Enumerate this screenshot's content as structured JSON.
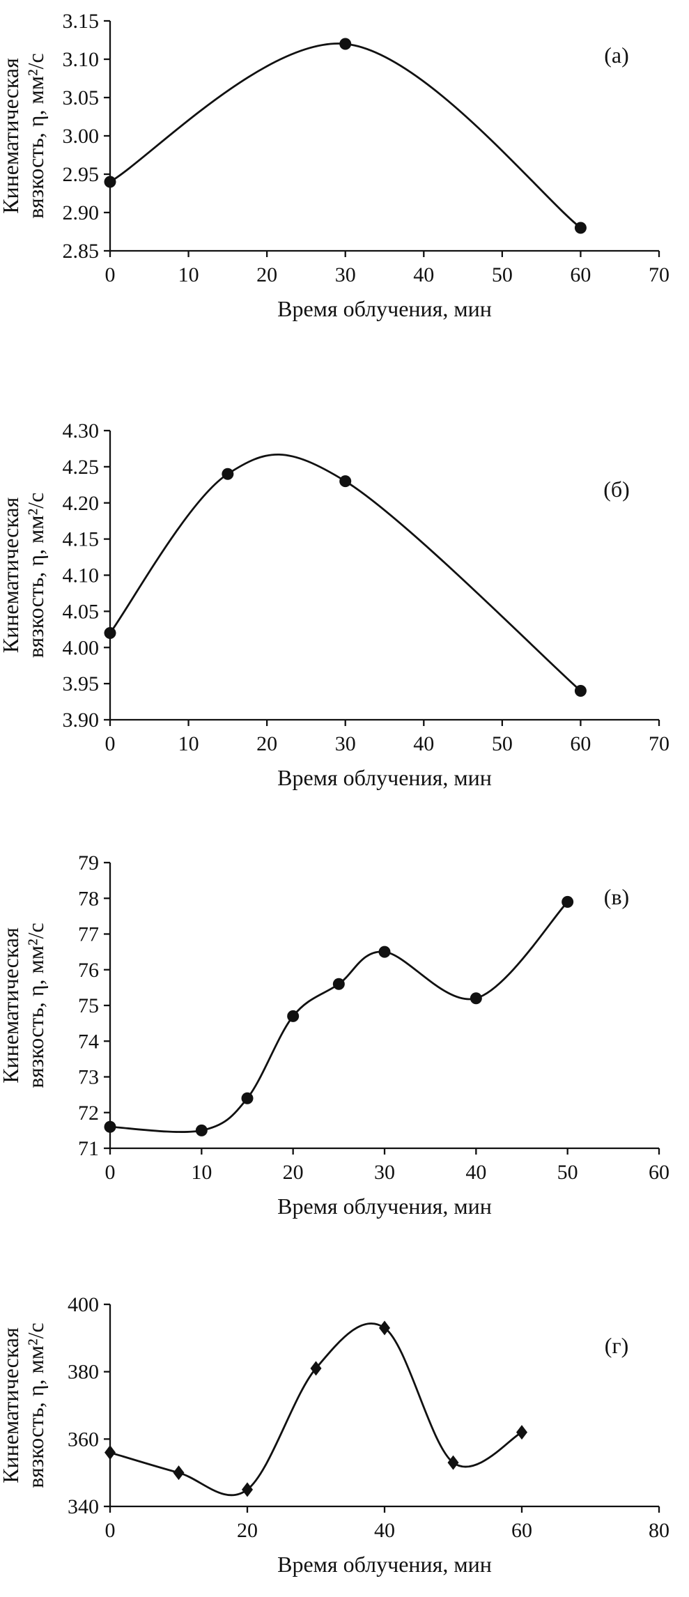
{
  "figure": {
    "background": "#ffffff",
    "ink_color": "#111111"
  },
  "chart_data": [
    {
      "type": "line",
      "panel_label": "(а)",
      "marker": "circle",
      "x": [
        0,
        30,
        60
      ],
      "y": [
        2.94,
        3.12,
        2.88
      ],
      "xlabel": "Время облучения, мин",
      "ylabel_lines": [
        "Кинематическая",
        "вязкость, η, мм²/с"
      ],
      "xlim": [
        0,
        70
      ],
      "ylim": [
        2.85,
        3.15
      ],
      "xticks": [
        0,
        10,
        20,
        30,
        40,
        50,
        60,
        70
      ],
      "xtick_labels": [
        "0",
        "10",
        "20",
        "30",
        "40",
        "50",
        "60",
        "70"
      ],
      "yticks": [
        2.85,
        2.9,
        2.95,
        3.0,
        3.05,
        3.1,
        3.15
      ],
      "ytick_labels": [
        "2.85",
        "2.90",
        "2.95",
        "3.00",
        "3.05",
        "3.10",
        "3.15"
      ],
      "grid": false,
      "legend": null
    },
    {
      "type": "line",
      "panel_label": "(б)",
      "marker": "circle",
      "x": [
        0,
        15,
        30,
        60
      ],
      "y": [
        4.02,
        4.24,
        4.23,
        3.94
      ],
      "xlabel": "Время облучения, мин",
      "ylabel_lines": [
        "Кинематическая",
        "вязкость, η, мм²/с"
      ],
      "xlim": [
        0,
        70
      ],
      "ylim": [
        3.9,
        4.3
      ],
      "xticks": [
        0,
        10,
        20,
        30,
        40,
        50,
        60,
        70
      ],
      "xtick_labels": [
        "0",
        "10",
        "20",
        "30",
        "40",
        "50",
        "60",
        "70"
      ],
      "yticks": [
        3.9,
        3.95,
        4.0,
        4.05,
        4.1,
        4.15,
        4.2,
        4.25,
        4.3
      ],
      "ytick_labels": [
        "3.90",
        "3.95",
        "4.00",
        "4.05",
        "4.10",
        "4.15",
        "4.20",
        "4.25",
        "4.30"
      ],
      "grid": false,
      "legend": null
    },
    {
      "type": "line",
      "panel_label": "(в)",
      "marker": "circle",
      "x": [
        0,
        10,
        15,
        20,
        25,
        30,
        40,
        50
      ],
      "y": [
        71.6,
        71.5,
        72.4,
        74.7,
        75.6,
        76.5,
        75.2,
        77.9
      ],
      "xlabel": "Время облучения, мин",
      "ylabel_lines": [
        "Кинематическая",
        "вязкость, η, мм²/с"
      ],
      "xlim": [
        0,
        60
      ],
      "ylim": [
        71,
        79
      ],
      "xticks": [
        0,
        10,
        20,
        30,
        40,
        50,
        60
      ],
      "xtick_labels": [
        "0",
        "10",
        "20",
        "30",
        "40",
        "50",
        "60"
      ],
      "yticks": [
        71,
        72,
        73,
        74,
        75,
        76,
        77,
        78,
        79
      ],
      "ytick_labels": [
        "71",
        "72",
        "73",
        "74",
        "75",
        "76",
        "77",
        "78",
        "79"
      ],
      "grid": false,
      "legend": null
    },
    {
      "type": "line",
      "panel_label": "(г)",
      "marker": "diamond",
      "x": [
        0,
        10,
        20,
        30,
        40,
        50,
        60
      ],
      "y": [
        356,
        350,
        345,
        381,
        393,
        353,
        362
      ],
      "xlabel": "Время облучения, мин",
      "ylabel_lines": [
        "Кинематическая",
        "вязкость, η, мм²/с"
      ],
      "xlim": [
        0,
        80
      ],
      "ylim": [
        340,
        400
      ],
      "xticks": [
        0,
        20,
        40,
        60,
        80
      ],
      "xtick_labels": [
        "0",
        "20",
        "40",
        "60",
        "80"
      ],
      "yticks": [
        340,
        360,
        380,
        400
      ],
      "ytick_labels": [
        "340",
        "360",
        "380",
        "400"
      ],
      "grid": false,
      "legend": null
    }
  ]
}
